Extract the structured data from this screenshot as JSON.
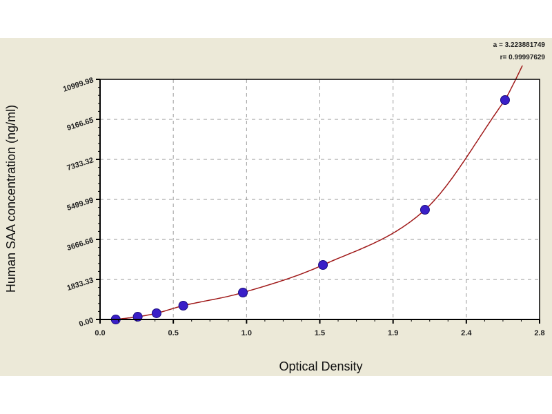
{
  "chart_data": {
    "type": "scatter",
    "title": "",
    "xlabel": "Optical Density",
    "ylabel": "Human SAA concentration (ng/ml)",
    "xlim": [
      0,
      2.8
    ],
    "ylim": [
      0,
      11000
    ],
    "x_tick_labels": [
      "0.0",
      "0.5",
      "1.0",
      "1.5",
      "1.9",
      "2.4",
      "2.8"
    ],
    "y_tick_labels": [
      "0.00",
      "1833.33",
      "3666.66",
      "5499.99",
      "7333.32",
      "9166.65",
      "10999.98"
    ],
    "grid": true,
    "annotations": [
      "a = 3.223881749",
      "r= 0.99997629"
    ],
    "series": [
      {
        "type": "scatter",
        "x": [
          0.1,
          0.24,
          0.36,
          0.53,
          0.91,
          1.42,
          2.07,
          2.58
        ],
        "y": [
          0,
          126,
          285,
          632,
          1233,
          2497,
          5025,
          10052
        ],
        "color": "#3a1fc8"
      },
      {
        "type": "fitted-curve",
        "color": "#a01a1a"
      }
    ]
  }
}
